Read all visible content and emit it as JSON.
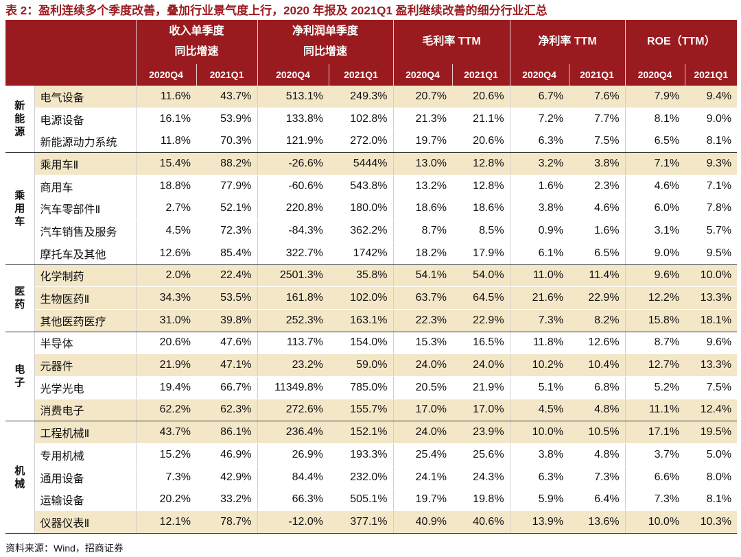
{
  "title": "表 2：盈利连续多个季度改善，叠加行业景气度上行，2020 年报及 2021Q1 盈利继续改善的细分行业汇总",
  "headers": {
    "groups": [
      {
        "line1": "收入单季度",
        "line2": "同比增速"
      },
      {
        "line1": "净利润单季度",
        "line2": "同比增速"
      },
      {
        "line1": "毛利率 TTM",
        "line2": ""
      },
      {
        "line1": "净利率 TTM",
        "line2": ""
      },
      {
        "line1": "ROE（TTM）",
        "line2": ""
      }
    ],
    "periods": [
      "2020Q4",
      "2021Q1"
    ]
  },
  "sectors": [
    {
      "name": "新能源",
      "rows": [
        {
          "name": "电气设备",
          "shade": true,
          "values": [
            "11.6%",
            "43.7%",
            "513.1%",
            "249.3%",
            "20.7%",
            "20.6%",
            "6.7%",
            "7.6%",
            "7.9%",
            "9.4%"
          ]
        },
        {
          "name": "电源设备",
          "shade": false,
          "values": [
            "16.1%",
            "53.9%",
            "133.8%",
            "102.8%",
            "21.3%",
            "21.1%",
            "7.2%",
            "7.7%",
            "8.1%",
            "9.0%"
          ]
        },
        {
          "name": "新能源动力系统",
          "shade": false,
          "values": [
            "11.8%",
            "70.3%",
            "121.9%",
            "272.0%",
            "19.7%",
            "20.6%",
            "6.3%",
            "7.5%",
            "6.5%",
            "8.1%"
          ]
        }
      ]
    },
    {
      "name": "乘用车",
      "rows": [
        {
          "name": "乘用车Ⅱ",
          "shade": true,
          "values": [
            "15.4%",
            "88.2%",
            "-26.6%",
            "5444%",
            "13.0%",
            "12.8%",
            "3.2%",
            "3.8%",
            "7.1%",
            "9.3%"
          ]
        },
        {
          "name": "商用车",
          "shade": false,
          "values": [
            "18.8%",
            "77.9%",
            "-60.6%",
            "543.8%",
            "13.2%",
            "12.8%",
            "1.6%",
            "2.3%",
            "4.6%",
            "7.1%"
          ]
        },
        {
          "name": "汽车零部件Ⅱ",
          "shade": false,
          "values": [
            "2.7%",
            "52.1%",
            "220.8%",
            "180.0%",
            "18.6%",
            "18.6%",
            "3.8%",
            "4.6%",
            "6.0%",
            "7.8%"
          ]
        },
        {
          "name": "汽车销售及服务",
          "shade": false,
          "values": [
            "4.5%",
            "72.3%",
            "-84.3%",
            "362.2%",
            "8.7%",
            "8.5%",
            "0.9%",
            "1.6%",
            "3.1%",
            "5.7%"
          ]
        },
        {
          "name": "摩托车及其他",
          "shade": false,
          "values": [
            "12.6%",
            "85.4%",
            "322.7%",
            "1742%",
            "18.2%",
            "17.9%",
            "6.1%",
            "6.5%",
            "9.0%",
            "9.5%"
          ]
        }
      ]
    },
    {
      "name": "医药",
      "rows": [
        {
          "name": "化学制药",
          "shade": true,
          "values": [
            "2.0%",
            "22.4%",
            "2501.3%",
            "35.8%",
            "54.1%",
            "54.0%",
            "11.0%",
            "11.4%",
            "9.6%",
            "10.0%"
          ]
        },
        {
          "name": "生物医药Ⅱ",
          "shade": true,
          "values": [
            "34.3%",
            "53.5%",
            "161.8%",
            "102.0%",
            "63.7%",
            "64.5%",
            "21.6%",
            "22.9%",
            "12.2%",
            "13.3%"
          ]
        },
        {
          "name": "其他医药医疗",
          "shade": true,
          "values": [
            "31.0%",
            "39.8%",
            "252.3%",
            "163.1%",
            "22.3%",
            "22.9%",
            "7.3%",
            "8.2%",
            "15.8%",
            "18.1%"
          ]
        }
      ]
    },
    {
      "name": "电子",
      "rows": [
        {
          "name": "半导体",
          "shade": false,
          "values": [
            "20.6%",
            "47.6%",
            "113.7%",
            "154.0%",
            "15.3%",
            "16.5%",
            "11.8%",
            "12.6%",
            "8.7%",
            "9.6%"
          ]
        },
        {
          "name": "元器件",
          "shade": true,
          "values": [
            "21.9%",
            "47.1%",
            "23.2%",
            "59.0%",
            "24.0%",
            "24.0%",
            "10.2%",
            "10.4%",
            "12.7%",
            "13.3%"
          ]
        },
        {
          "name": "光学光电",
          "shade": false,
          "values": [
            "19.4%",
            "66.7%",
            "11349.8%",
            "785.0%",
            "20.5%",
            "21.9%",
            "5.1%",
            "6.8%",
            "5.2%",
            "7.5%"
          ]
        },
        {
          "name": "消费电子",
          "shade": true,
          "values": [
            "62.2%",
            "62.3%",
            "272.6%",
            "155.7%",
            "17.0%",
            "17.0%",
            "4.5%",
            "4.8%",
            "11.1%",
            "12.4%"
          ]
        }
      ]
    },
    {
      "name": "机械",
      "rows": [
        {
          "name": "工程机械Ⅱ",
          "shade": true,
          "values": [
            "43.7%",
            "86.1%",
            "236.4%",
            "152.1%",
            "24.0%",
            "23.9%",
            "10.0%",
            "10.5%",
            "17.1%",
            "19.5%"
          ]
        },
        {
          "name": "专用机械",
          "shade": false,
          "values": [
            "15.2%",
            "46.9%",
            "26.9%",
            "193.3%",
            "25.4%",
            "25.6%",
            "3.8%",
            "4.8%",
            "3.7%",
            "5.0%"
          ]
        },
        {
          "name": "通用设备",
          "shade": false,
          "values": [
            "7.3%",
            "42.9%",
            "84.4%",
            "232.0%",
            "24.1%",
            "24.3%",
            "6.3%",
            "7.3%",
            "6.6%",
            "8.0%"
          ]
        },
        {
          "name": "运输设备",
          "shade": false,
          "values": [
            "20.2%",
            "33.2%",
            "66.3%",
            "505.1%",
            "19.7%",
            "19.8%",
            "5.9%",
            "6.4%",
            "7.3%",
            "8.1%"
          ]
        },
        {
          "name": "仪器仪表Ⅱ",
          "shade": true,
          "values": [
            "12.1%",
            "78.7%",
            "-12.0%",
            "377.1%",
            "40.9%",
            "40.6%",
            "13.9%",
            "13.6%",
            "10.0%",
            "10.3%"
          ]
        }
      ]
    }
  ],
  "source": "资料来源：Wind，招商证券"
}
